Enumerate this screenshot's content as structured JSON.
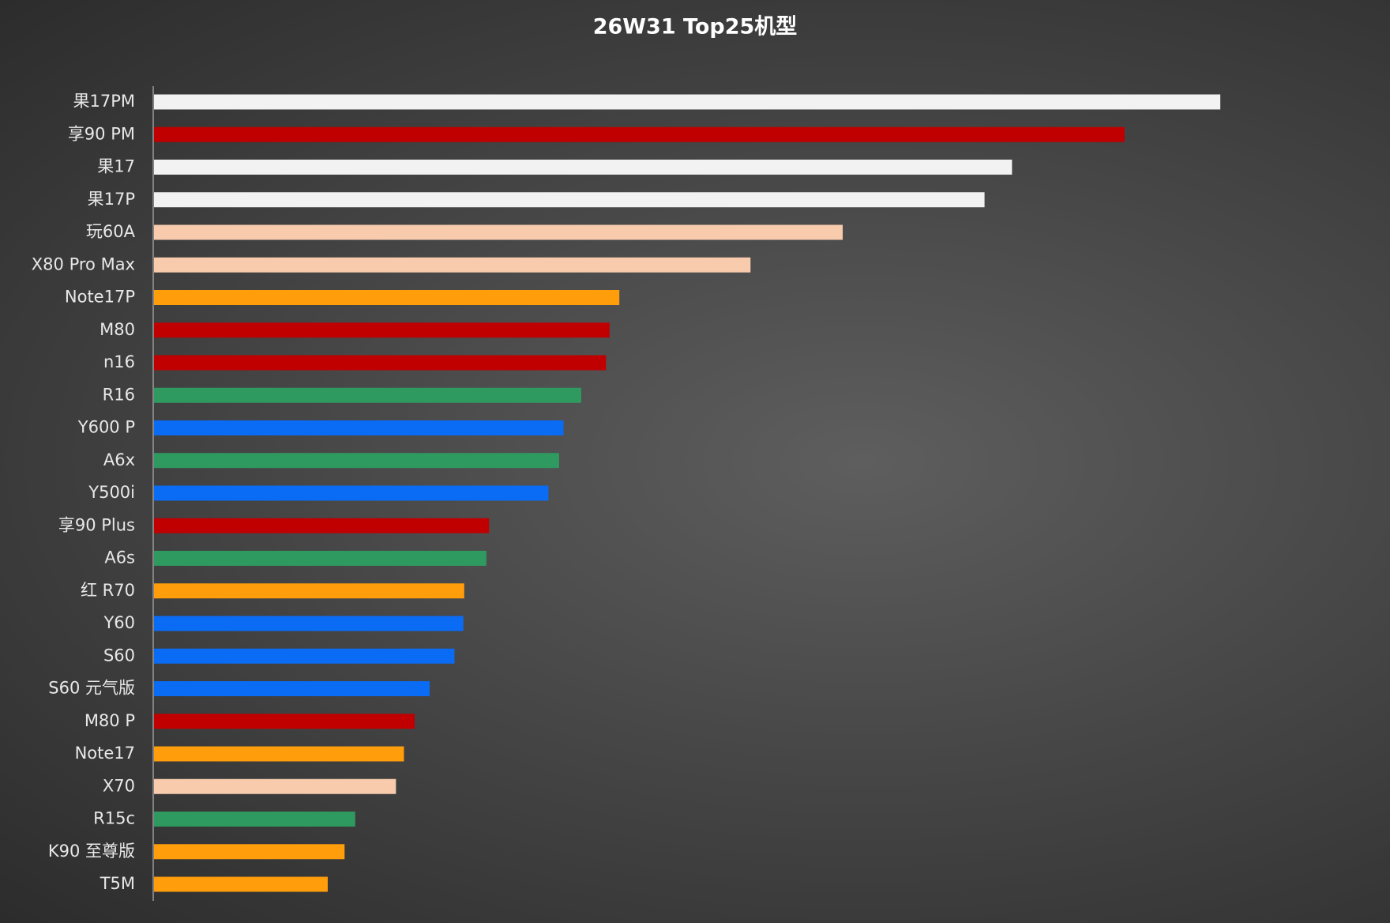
{
  "chart_data": {
    "type": "barh",
    "title": "26W31 Top25机型",
    "categories": [
      "果17PM",
      "享90 PM",
      "果17",
      "果17P",
      "玩60A",
      "X80 Pro Max",
      "Note17P",
      "M80",
      "n16",
      "R16",
      "Y600 P",
      "A6x",
      "Y500i",
      "享90 Plus",
      "A6s",
      "红 R70",
      "Y60",
      "S60",
      "S60 元气版",
      "M80 P",
      "Note17",
      "X70",
      "R15c",
      "K90 至尊版",
      "T5M"
    ],
    "values": [
      1203,
      1095,
      968,
      937,
      777,
      673,
      525,
      514,
      510,
      482,
      462,
      457,
      445,
      378,
      375,
      350,
      349,
      339,
      311,
      294,
      282,
      273,
      227,
      215,
      196
    ],
    "colors": [
      "#f2f2f2",
      "#c00000",
      "#f2f2f2",
      "#f2f2f2",
      "#f8cbad",
      "#f8cbad",
      "#ff9d0a",
      "#c00000",
      "#c00000",
      "#2e9a5f",
      "#0a6cf5",
      "#2e9a5f",
      "#0a6cf5",
      "#c00000",
      "#2e9a5f",
      "#ff9d0a",
      "#0a6cf5",
      "#0a6cf5",
      "#0a6cf5",
      "#c00000",
      "#ff9d0a",
      "#f8cbad",
      "#2e9a5f",
      "#ff9d0a",
      "#ff9d0a"
    ],
    "xlim": [
      0,
      1390
    ]
  }
}
